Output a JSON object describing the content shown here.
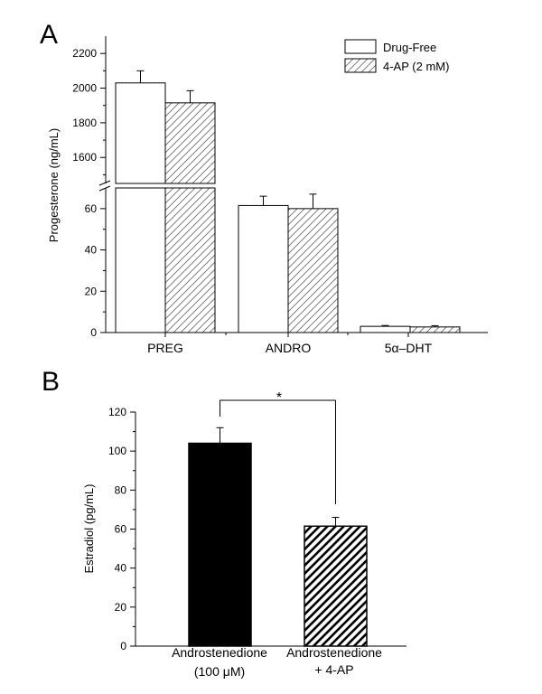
{
  "chart_data": [
    {
      "type": "bar",
      "panel_label": "A",
      "ylabel": "Progesterone (ng/mL)",
      "axis_break": true,
      "y_lower_range": [
        0,
        70
      ],
      "y_upper_range": [
        1450,
        2300
      ],
      "y_lower_ticks": [
        "0",
        "20",
        "40",
        "60"
      ],
      "y_upper_ticks": [
        "1600",
        "1800",
        "2000",
        "2200"
      ],
      "categories": [
        "PREG",
        "ANDRO",
        "5α–DHT"
      ],
      "series": [
        {
          "name": "Drug-Free",
          "values": [
            2030,
            61.5,
            3.0
          ],
          "errors": [
            70,
            4.5,
            0.4
          ],
          "fill": "open"
        },
        {
          "name": "4-AP (2 mM)",
          "values": [
            1915,
            60.0,
            2.7
          ],
          "errors": [
            70,
            7.0,
            0.6
          ],
          "fill": "hatched"
        }
      ],
      "legend_position": "top-right"
    },
    {
      "type": "bar",
      "panel_label": "B",
      "ylabel": "Estradiol (pg/mL)",
      "ylim": [
        0,
        120
      ],
      "y_ticks": [
        "0",
        "20",
        "40",
        "60",
        "80",
        "100",
        "120"
      ],
      "categories": [
        {
          "line1": "Androstenedione",
          "line2": "(100 μM)"
        },
        {
          "line1": "Androstenedione",
          "line2": "+ 4-AP"
        }
      ],
      "values": [
        104,
        61.5
      ],
      "errors": [
        8,
        4.5
      ],
      "fills": [
        "solid",
        "hatched"
      ],
      "significance": "*"
    }
  ]
}
